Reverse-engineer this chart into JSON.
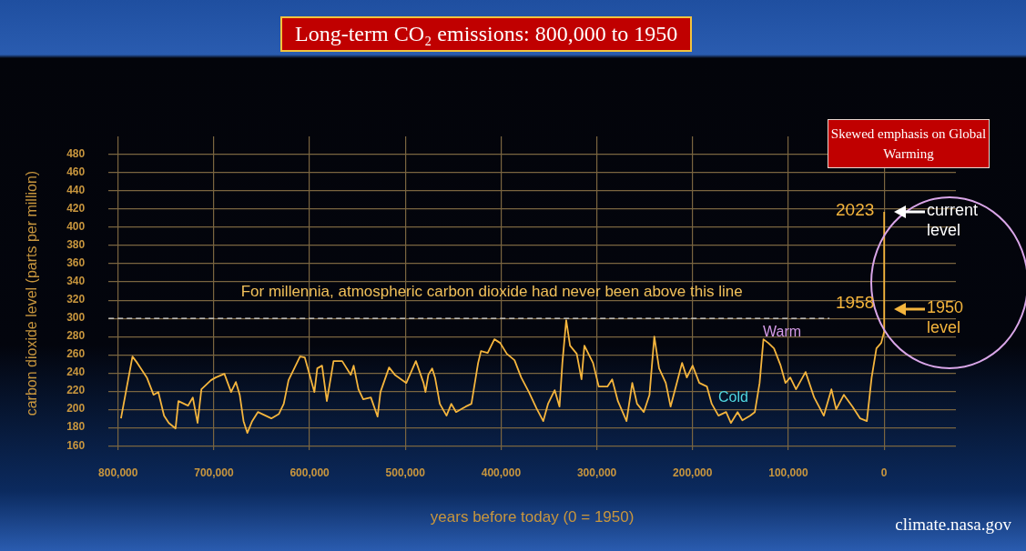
{
  "chart_data": {
    "type": "line",
    "title": "Long-term CO₂ emissions: 800,000 to 1950",
    "xlabel": "years before today (0 = 1950)",
    "ylabel": "carbon dioxide level (parts per million)",
    "x": [
      797000,
      785000,
      780000,
      770000,
      763000,
      758000,
      752000,
      747000,
      740000,
      737000,
      727000,
      722000,
      717000,
      713000,
      703000,
      698000,
      689000,
      682000,
      677000,
      673000,
      669000,
      665000,
      660000,
      654000,
      640000,
      632000,
      627000,
      622000,
      610000,
      605000,
      600000,
      595000,
      592000,
      587000,
      582000,
      575000,
      566000,
      557000,
      554000,
      549000,
      544000,
      536000,
      529000,
      526000,
      517000,
      511000,
      499000,
      489000,
      481000,
      479000,
      476000,
      472000,
      469000,
      464000,
      457000,
      452000,
      447000,
      437000,
      431000,
      424000,
      421000,
      414000,
      407000,
      401000,
      394000,
      386000,
      379000,
      371000,
      363000,
      356000,
      351000,
      344000,
      339000,
      336000,
      332000,
      328000,
      321000,
      316000,
      313000,
      304000,
      298000,
      289000,
      284000,
      278000,
      269000,
      263000,
      258000,
      251000,
      245000,
      240000,
      235000,
      228000,
      223000,
      215000,
      211000,
      206000,
      200000,
      193000,
      185000,
      180000,
      173000,
      165000,
      160000,
      153000,
      148000,
      140000,
      135000,
      130000,
      126000,
      121000,
      115000,
      108000,
      103000,
      98000,
      92000,
      82000,
      73000,
      63000,
      55000,
      50000,
      42000,
      33000,
      25000,
      18000,
      13000,
      8000,
      3000,
      0,
      -73
    ],
    "series": [
      {
        "color": "#f5b53d",
        "values": [
          190,
          258,
          251,
          235,
          216,
          219,
          193,
          185,
          179,
          209,
          204,
          213,
          185,
          222,
          232,
          235,
          239,
          219,
          230,
          216,
          187,
          174,
          187,
          197,
          190,
          195,
          206,
          232,
          258,
          257,
          238,
          219,
          245,
          248,
          209,
          253,
          253,
          238,
          248,
          222,
          211,
          213,
          192,
          219,
          246,
          238,
          229,
          253,
          229,
          219,
          238,
          245,
          235,
          206,
          193,
          206,
          197,
          203,
          206,
          251,
          264,
          262,
          277,
          273,
          261,
          254,
          235,
          219,
          201,
          187,
          206,
          221,
          203,
          251,
          298,
          270,
          261,
          233,
          270,
          251,
          225,
          225,
          233,
          209,
          187,
          229,
          206,
          197,
          216,
          280,
          245,
          229,
          203,
          235,
          251,
          235,
          248,
          229,
          225,
          206,
          193,
          197,
          185,
          197,
          188,
          193,
          197,
          229,
          277,
          273,
          267,
          248,
          229,
          235,
          222,
          241,
          213,
          193,
          222,
          200,
          216,
          203,
          190,
          187,
          235,
          267,
          273,
          285,
          417
        ]
      }
    ],
    "xlim": [
      810000,
      -75000
    ],
    "ylim": [
      155,
      500
    ],
    "xticks": [
      {
        "value": 800000,
        "label": "800,000"
      },
      {
        "value": 700000,
        "label": "700,000"
      },
      {
        "value": 600000,
        "label": "600,000"
      },
      {
        "value": 500000,
        "label": "500,000"
      },
      {
        "value": 400000,
        "label": "400,000"
      },
      {
        "value": 300000,
        "label": "300,000"
      },
      {
        "value": 200000,
        "label": "200,000"
      },
      {
        "value": 100000,
        "label": "100,000"
      },
      0
    ],
    "yticks": [
      160,
      180,
      200,
      220,
      240,
      260,
      280,
      300,
      320,
      340,
      360,
      380,
      400,
      420,
      440,
      460,
      480
    ],
    "grid": true,
    "legend": false,
    "marker": "none",
    "line_style": "solid",
    "ref_lines": [
      {
        "axis": "y",
        "value": 300,
        "label": "For millennia, atmospheric carbon dioxide had never been above this line",
        "color": "#d8d8d8",
        "line_style": "dashed"
      }
    ],
    "annotations": [
      "Warm",
      "Cold",
      "2023",
      "1958",
      "current level",
      "1950 level",
      "Skewed emphasis on Global Warming",
      "climate.nasa.gov"
    ]
  }
}
